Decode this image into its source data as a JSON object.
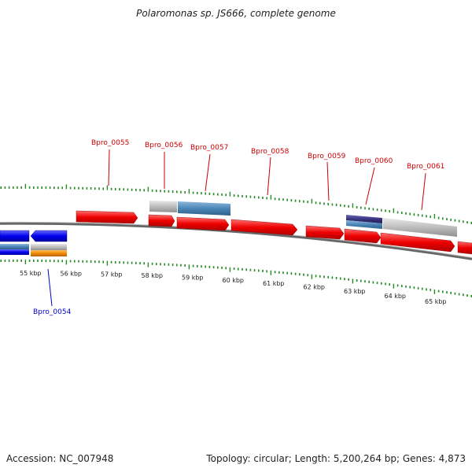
{
  "title": "Polaromonas sp. JS666, complete genome",
  "footer": {
    "accession": "Accession: NC_007948",
    "summary": "Topology: circular; Length: 5,200,264 bp; Genes: 4,873"
  },
  "colors": {
    "forward_gene": "#ee0000",
    "reverse_gene": "#0000ee",
    "gray_feature": "#b8b8b8",
    "steelblue_feature": "#4a86b8",
    "navy_feature": "#3a3580",
    "orange_feature": "#f08a00",
    "tick": "#228b22",
    "backbone": "#777777",
    "label_red": "#cc0000",
    "label_blue": "#0000cc"
  },
  "scale_labels": [
    "55 kbp",
    "56 kbp",
    "57 kbp",
    "58 kbp",
    "59 kbp",
    "60 kbp",
    "61 kbp",
    "62 kbp",
    "63 kbp",
    "64 kbp",
    "65 kbp"
  ],
  "gene_labels": [
    {
      "name": "Bpro_0054",
      "color": "blue"
    },
    {
      "name": "Bpro_0055",
      "color": "red"
    },
    {
      "name": "Bpro_0056",
      "color": "red"
    },
    {
      "name": "Bpro_0057",
      "color": "red"
    },
    {
      "name": "Bpro_0058",
      "color": "red"
    },
    {
      "name": "Bpro_0059",
      "color": "red"
    },
    {
      "name": "Bpro_0060",
      "color": "red"
    },
    {
      "name": "Bpro_0061",
      "color": "red"
    }
  ]
}
